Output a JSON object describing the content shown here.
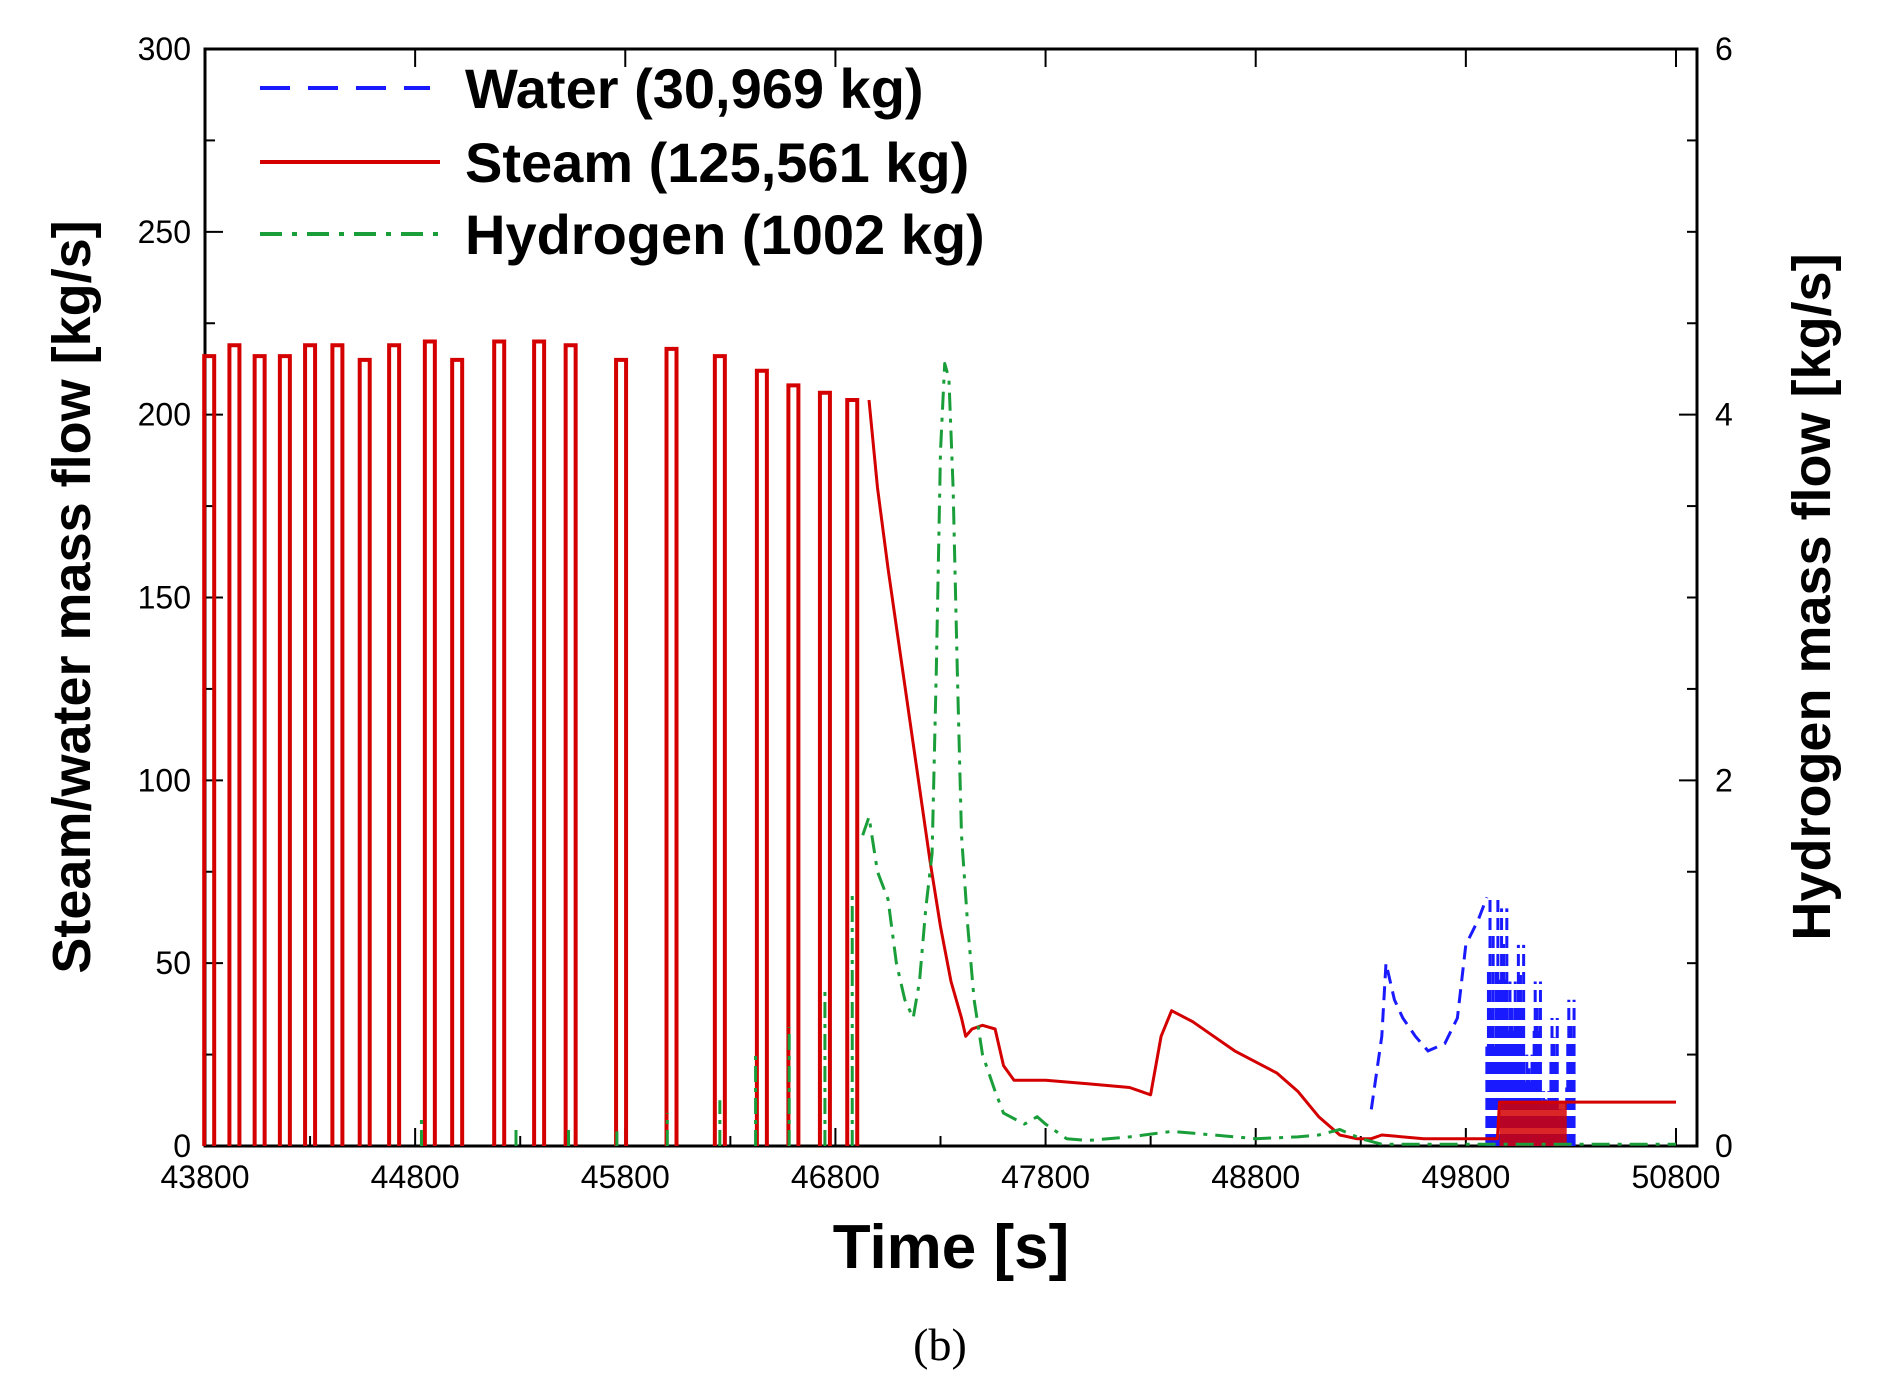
{
  "chart_data": {
    "type": "line",
    "title": "",
    "xlabel": "Time [s]",
    "ylabel": "Steam/water mass flow [kg/s]",
    "y2label": "Hydrogen mass flow [kg/s]",
    "xlim": [
      43800,
      50900
    ],
    "ylim": [
      0,
      300
    ],
    "y2lim": [
      0,
      6
    ],
    "x_ticks": [
      "43800",
      "44800",
      "45800",
      "46800",
      "47800",
      "48800",
      "49800",
      "50800"
    ],
    "y_ticks": [
      "0",
      "50",
      "100",
      "150",
      "200",
      "250",
      "300"
    ],
    "y2_ticks": [
      "0",
      "2",
      "4",
      "6"
    ],
    "legend_position": "top-left",
    "series": [
      {
        "name": "Water",
        "legend_label": "Water (30,969 kg)",
        "axis": "left",
        "color": "#1a1aff",
        "style": "dashed",
        "x": [
          49350,
          49400,
          49420,
          49460,
          49500,
          49560,
          49620,
          49700,
          49760,
          49800,
          49860,
          49900,
          49960,
          50000,
          50040,
          50080,
          50120,
          50160,
          50200,
          50240,
          50280,
          50320
        ],
        "values": [
          10,
          30,
          50,
          40,
          35,
          30,
          26,
          28,
          35,
          55,
          62,
          68,
          65,
          45,
          55,
          25,
          45,
          15,
          35,
          10,
          40,
          1
        ]
      },
      {
        "name": "Steam",
        "legend_label": "Steam (125,561 kg)",
        "axis": "left",
        "color": "#d40000",
        "style": "solid",
        "pulses": {
          "x": [
            43820,
            43940,
            44060,
            44180,
            44300,
            44430,
            44560,
            44700,
            44870,
            45000,
            45200,
            45390,
            45540,
            45780,
            46020,
            46250,
            46450,
            46600,
            46750,
            46880
          ],
          "values": [
            216,
            219,
            216,
            216,
            219,
            219,
            215,
            219,
            220,
            215,
            220,
            220,
            219,
            215,
            218,
            216,
            212,
            208,
            206,
            204
          ]
        },
        "x": [
          46960,
          47000,
          47050,
          47100,
          47150,
          47200,
          47250,
          47300,
          47350,
          47400,
          47420,
          47450,
          47500,
          47560,
          47600,
          47650,
          47800,
          48000,
          48200,
          48300,
          48350,
          48400,
          48500,
          48600,
          48700,
          48800,
          48900,
          49000,
          49100,
          49200,
          49280,
          49350,
          49400,
          49600,
          49800,
          49900,
          49950,
          49960,
          50100,
          50300,
          50500,
          50800
        ],
        "values": [
          204,
          180,
          158,
          138,
          118,
          98,
          78,
          60,
          45,
          35,
          30,
          32,
          33,
          32,
          22,
          18,
          18,
          17,
          16,
          14,
          30,
          37,
          34,
          30,
          26,
          23,
          20,
          15,
          8,
          3,
          2,
          2,
          3,
          2,
          2,
          2,
          2,
          12,
          12,
          12,
          12,
          12
        ]
      },
      {
        "name": "Hydrogen",
        "legend_label": "Hydrogen (1002 kg)",
        "axis": "right",
        "color": "#1a9e3a",
        "style": "dashdot",
        "spikes": {
          "x": [
            44830,
            45280,
            45530,
            45760,
            46000,
            46250,
            46420,
            46580,
            46750,
            46880
          ],
          "values": [
            0.15,
            0.1,
            0.1,
            0.08,
            0.18,
            0.25,
            0.5,
            0.65,
            0.85,
            1.4
          ]
        },
        "x": [
          46930,
          46960,
          47000,
          47050,
          47090,
          47130,
          47170,
          47200,
          47230,
          47260,
          47280,
          47300,
          47320,
          47340,
          47360,
          47380,
          47400,
          47430,
          47460,
          47500,
          47560,
          47600,
          47700,
          47760,
          47800,
          47850,
          47900,
          48000,
          48200,
          48400,
          48600,
          48800,
          49000,
          49100,
          49200,
          49300,
          49400,
          50000,
          50800
        ],
        "values": [
          1.7,
          1.8,
          1.5,
          1.35,
          1.0,
          0.8,
          0.7,
          0.9,
          1.3,
          1.6,
          2.6,
          3.8,
          4.28,
          4.2,
          3.6,
          2.6,
          1.7,
          1.2,
          0.8,
          0.5,
          0.3,
          0.18,
          0.12,
          0.16,
          0.12,
          0.08,
          0.04,
          0.03,
          0.05,
          0.08,
          0.06,
          0.04,
          0.05,
          0.06,
          0.09,
          0.04,
          0.01,
          0.01,
          0.01
        ]
      }
    ]
  },
  "caption": "(b)"
}
